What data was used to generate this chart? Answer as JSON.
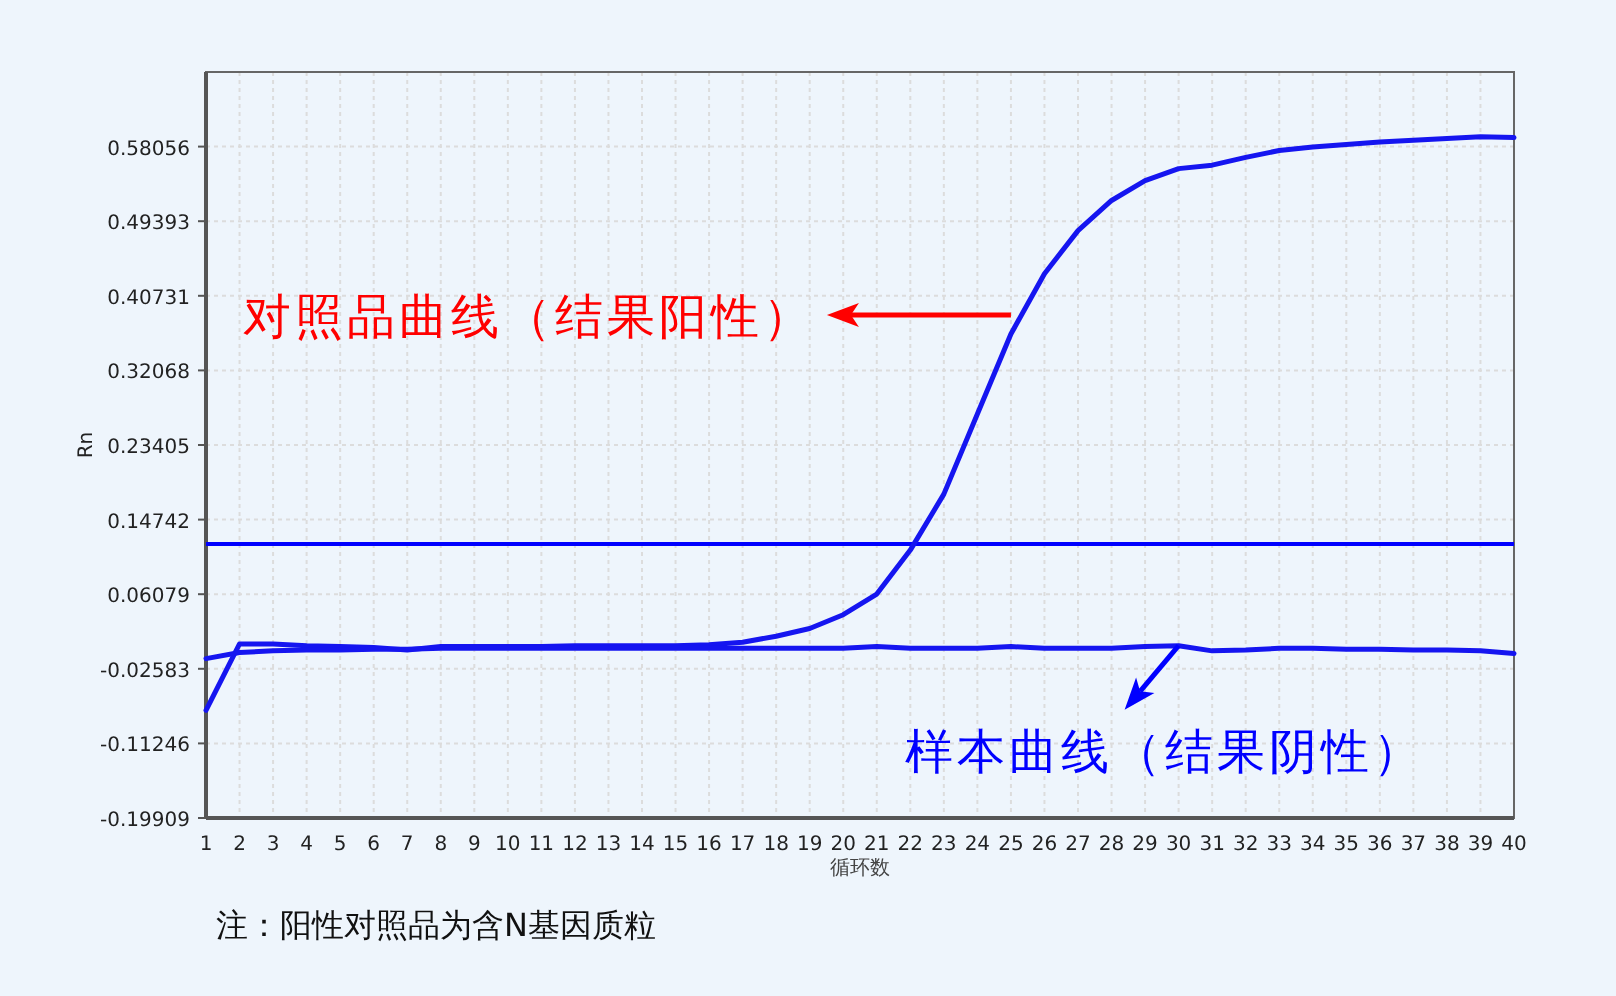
{
  "chart_data": {
    "type": "line",
    "xlabel": "循环数",
    "ylabel": "Rn",
    "x": [
      1,
      2,
      3,
      4,
      5,
      6,
      7,
      8,
      9,
      10,
      11,
      12,
      13,
      14,
      15,
      16,
      17,
      18,
      19,
      20,
      21,
      22,
      23,
      24,
      25,
      26,
      27,
      28,
      29,
      30,
      31,
      32,
      33,
      34,
      35,
      36,
      37,
      38,
      39,
      40
    ],
    "series": [
      {
        "color": "#1515f0",
        "values": [
          -0.074,
          0.003,
          0.003,
          0.001,
          0.0,
          -0.001,
          -0.004,
          0.0,
          0.0,
          0.0,
          0.0,
          0.001,
          0.001,
          0.001,
          0.001,
          0.002,
          0.005,
          0.012,
          0.021,
          0.037,
          0.061,
          0.112,
          0.177,
          0.27,
          0.363,
          0.433,
          0.483,
          0.518,
          0.541,
          0.555,
          0.559,
          0.568,
          0.576,
          0.58,
          0.583,
          0.586,
          0.588,
          0.59,
          0.592,
          0.591
        ]
      },
      {
        "color": "#1515f0",
        "values": [
          -0.014,
          -0.007,
          -0.005,
          -0.004,
          -0.004,
          -0.003,
          -0.003,
          -0.002,
          -0.002,
          -0.002,
          -0.002,
          -0.002,
          -0.002,
          -0.002,
          -0.002,
          -0.002,
          -0.002,
          -0.002,
          -0.002,
          -0.002,
          0.0,
          -0.002,
          -0.002,
          -0.002,
          0.0,
          -0.002,
          -0.002,
          -0.002,
          0.0,
          0.001,
          -0.005,
          -0.004,
          -0.002,
          -0.002,
          -0.003,
          -0.003,
          -0.004,
          -0.004,
          -0.005,
          -0.008
        ]
      }
    ],
    "xlim": [
      1,
      40
    ],
    "xticks": [
      1,
      2,
      3,
      4,
      5,
      6,
      7,
      8,
      9,
      10,
      11,
      12,
      13,
      14,
      15,
      16,
      17,
      18,
      19,
      20,
      21,
      22,
      23,
      24,
      25,
      26,
      27,
      28,
      29,
      30,
      31,
      32,
      33,
      34,
      35,
      36,
      37,
      38,
      39,
      40
    ],
    "ylim": [
      -0.19909,
      0.66719
    ],
    "yticks": [
      -0.19909,
      -0.11246,
      -0.02583,
      0.06079,
      0.14742,
      0.23405,
      0.32068,
      0.40731,
      0.49393,
      0.58056
    ],
    "grid": true,
    "marker": "none",
    "line_style": "solid",
    "ref_lines": [
      {
        "axis": "y",
        "value": 0.119,
        "color": "#0000ff"
      }
    ],
    "annotations": [
      {
        "text": "对照品曲线（结果阳性）",
        "x": 25,
        "y": 0.385
      },
      {
        "text": "样本曲线（结果阴性）",
        "x": 30,
        "y": 0.001
      },
      "注：阳性对照品为含N基因质粒"
    ]
  }
}
